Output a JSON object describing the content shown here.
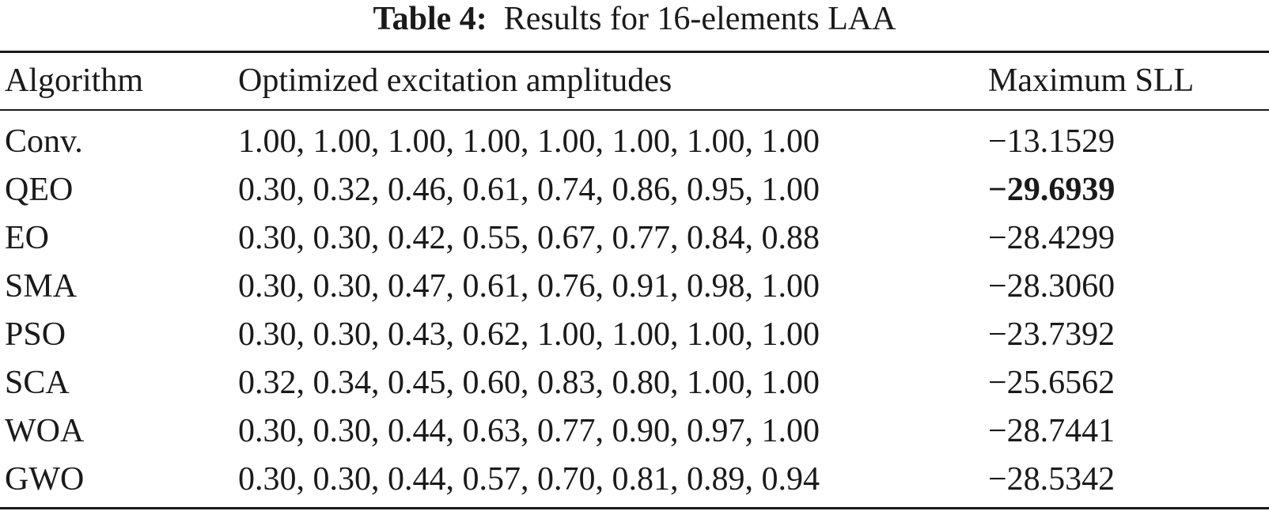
{
  "caption": {
    "label": "Table 4:",
    "text": "Results for 16-elements LAA"
  },
  "headers": {
    "algorithm": "Algorithm",
    "amplitudes": "Optimized excitation amplitudes",
    "sll": "Maximum SLL"
  },
  "rows": [
    {
      "algorithm": "Conv.",
      "amplitudes": "1.00, 1.00, 1.00, 1.00, 1.00, 1.00, 1.00, 1.00",
      "sll": "−13.1529",
      "best": false
    },
    {
      "algorithm": "QEO",
      "amplitudes": "0.30, 0.32, 0.46, 0.61, 0.74, 0.86, 0.95, 1.00",
      "sll": "−29.6939",
      "best": true
    },
    {
      "algorithm": "EO",
      "amplitudes": "0.30, 0.30, 0.42, 0.55, 0.67, 0.77, 0.84, 0.88",
      "sll": "−28.4299",
      "best": false
    },
    {
      "algorithm": "SMA",
      "amplitudes": "0.30, 0.30, 0.47, 0.61, 0.76, 0.91, 0.98, 1.00",
      "sll": "−28.3060",
      "best": false
    },
    {
      "algorithm": "PSO",
      "amplitudes": "0.30, 0.30, 0.43, 0.62, 1.00, 1.00, 1.00, 1.00",
      "sll": "−23.7392",
      "best": false
    },
    {
      "algorithm": "SCA",
      "amplitudes": "0.32, 0.34, 0.45, 0.60, 0.83, 0.80, 1.00, 1.00",
      "sll": "−25.6562",
      "best": false
    },
    {
      "algorithm": "WOA",
      "amplitudes": "0.30, 0.30, 0.44, 0.63, 0.77, 0.90, 0.97, 1.00",
      "sll": "−28.7441",
      "best": false
    },
    {
      "algorithm": "GWO",
      "amplitudes": "0.30, 0.30, 0.44, 0.57, 0.70, 0.81, 0.89, 0.94",
      "sll": "−28.5342",
      "best": false
    }
  ]
}
